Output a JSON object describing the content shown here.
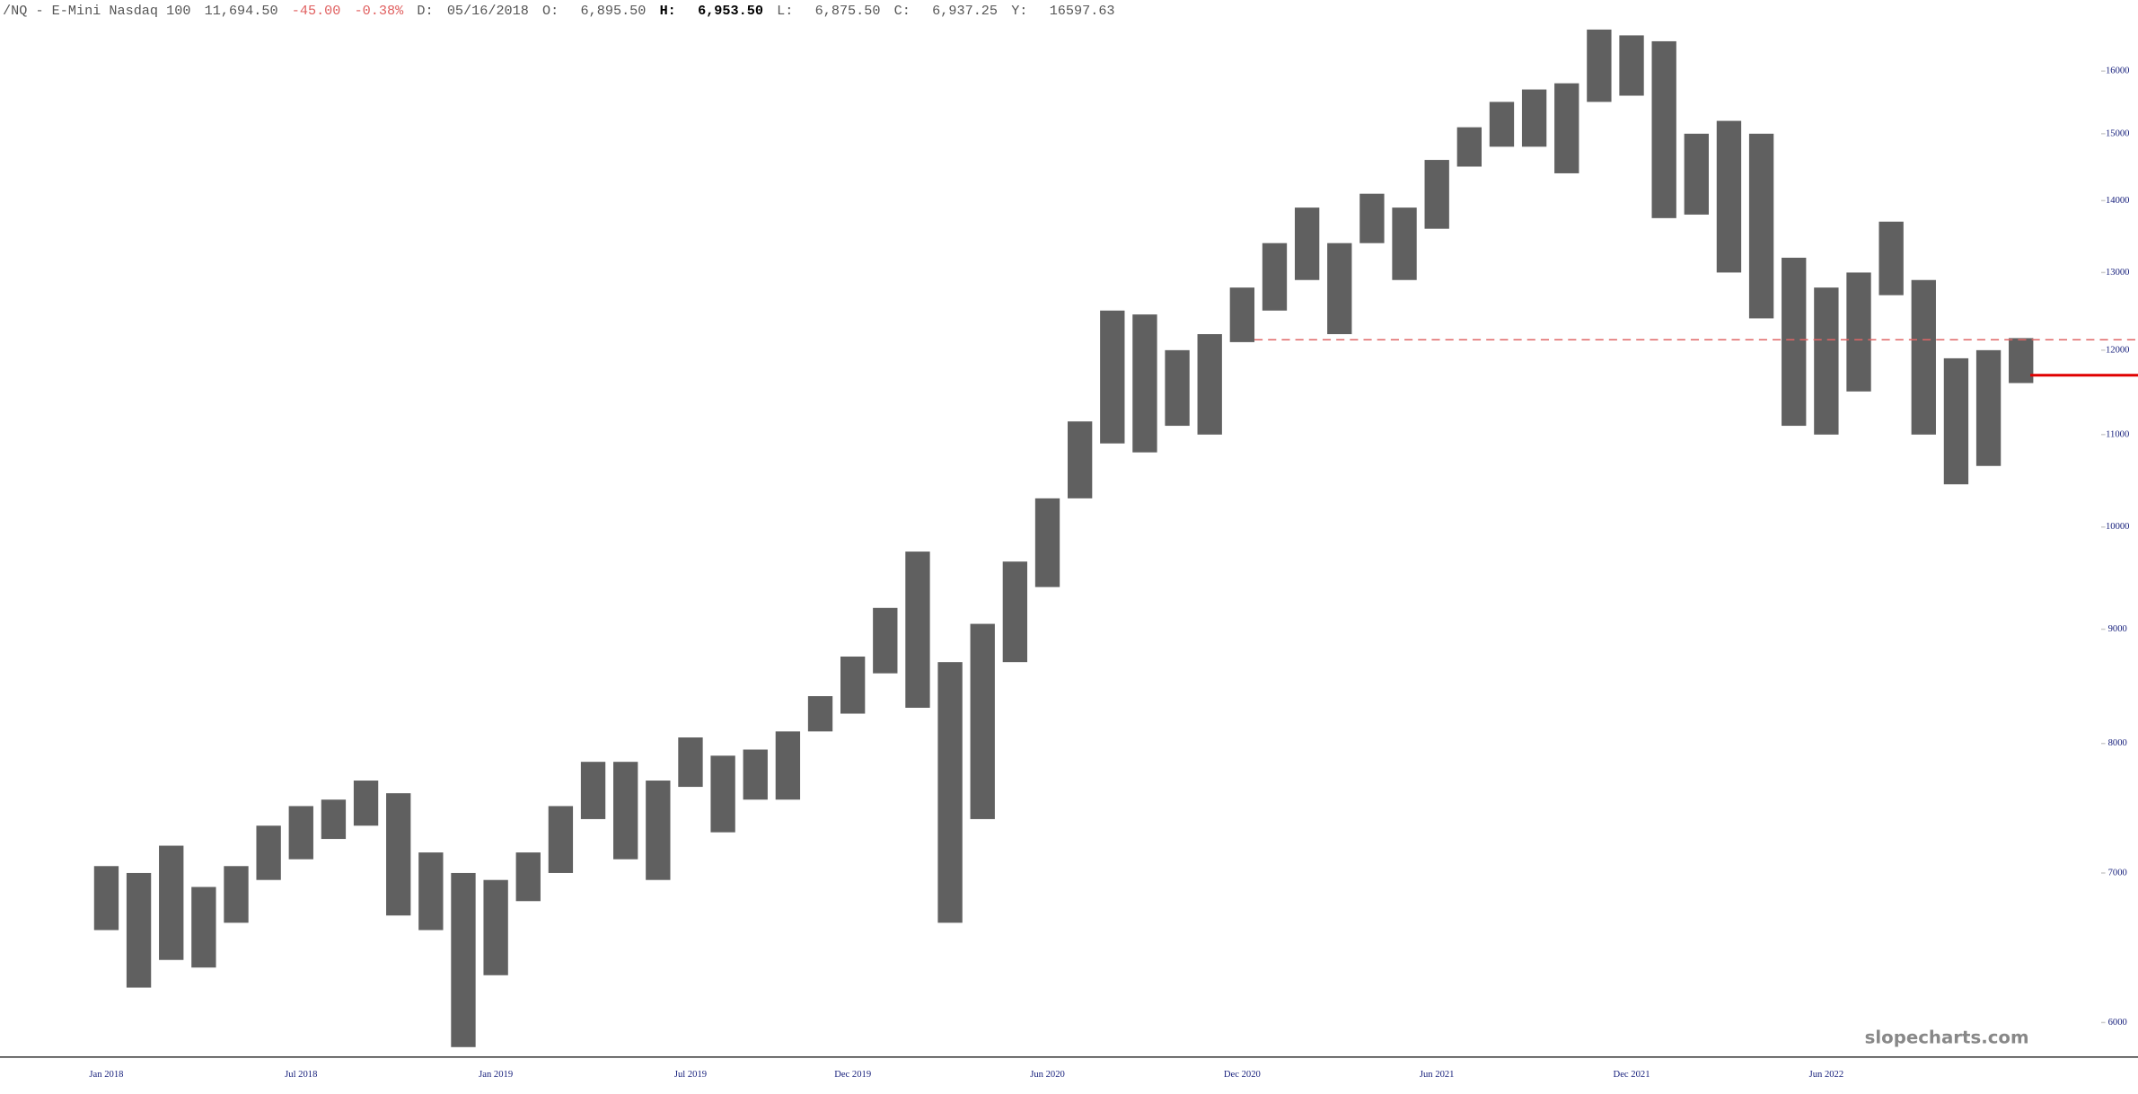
{
  "chart_data": {
    "type": "range_bar",
    "header": {
      "symbol": "/NQ - E-Mini Nasdaq 100",
      "last": "11,694.50",
      "change": "-45.00",
      "change_pct": "-0.38%",
      "date_label": "D:",
      "date": "05/16/2018",
      "open_label": "O:",
      "open": "6,895.50",
      "high_label": "H:",
      "high": "6,953.50",
      "low_label": "L:",
      "low": "6,875.50",
      "close_label": "C:",
      "close": "6,937.25",
      "y_label": "Y:",
      "y": "16597.63"
    },
    "watermark": "slopecharts.com",
    "categories": [
      "Jan 2018",
      null,
      null,
      null,
      null,
      null,
      "Jul 2018",
      null,
      null,
      null,
      null,
      null,
      "Jan 2019",
      null,
      null,
      null,
      null,
      null,
      "Jul 2019",
      null,
      null,
      null,
      null,
      "Dec 2019",
      null,
      null,
      null,
      null,
      null,
      "Jun 2020",
      null,
      null,
      null,
      null,
      null,
      "Dec 2020",
      null,
      null,
      null,
      null,
      null,
      "Jun 2021",
      null,
      null,
      null,
      null,
      null,
      "Dec 2021",
      null,
      null,
      null,
      null,
      null,
      "Jun 2022",
      null,
      null,
      null,
      null,
      null,
      null
    ],
    "high": [
      7050,
      7000,
      7200,
      6900,
      7050,
      7350,
      7500,
      7550,
      7700,
      7600,
      7150,
      7000,
      6950,
      7150,
      7500,
      7850,
      7850,
      7700,
      8050,
      7900,
      7950,
      8100,
      8400,
      8750,
      9200,
      9750,
      8700,
      9050,
      9650,
      10300,
      11150,
      12500,
      12450,
      12000,
      12200,
      12800,
      13400,
      13900,
      13400,
      14100,
      13900,
      14600,
      15100,
      15500,
      15700,
      15800,
      16700,
      16600,
      16500,
      15000,
      15200,
      15000,
      13200,
      12800,
      13000,
      13700,
      12900,
      11900,
      12000,
      12150
    ],
    "low": [
      6600,
      6220,
      6400,
      6350,
      6650,
      6950,
      7100,
      7250,
      7350,
      6700,
      6600,
      5850,
      6300,
      6800,
      7000,
      7400,
      7100,
      6950,
      7650,
      7300,
      7550,
      7550,
      8100,
      8250,
      8600,
      8300,
      6650,
      7400,
      8700,
      9400,
      10300,
      10900,
      10800,
      11100,
      11000,
      12100,
      12500,
      12900,
      12200,
      13400,
      12900,
      13600,
      14500,
      14800,
      14800,
      14400,
      15500,
      15600,
      13750,
      13800,
      13000,
      12400,
      11100,
      11000,
      11500,
      12700,
      11000,
      10450,
      10650,
      11600
    ],
    "color": "#444444",
    "log_scale": true,
    "ylim": [
      5790,
      16880
    ],
    "yticks": [
      6000,
      7000,
      8000,
      9000,
      10000,
      11000,
      12000,
      13000,
      14000,
      15000,
      16000
    ],
    "reference_lines": [
      {
        "value": 12130,
        "style": "dashed",
        "color": "#e06666"
      },
      {
        "value": 11694.5,
        "style": "solid",
        "color": "#e00000"
      }
    ]
  }
}
